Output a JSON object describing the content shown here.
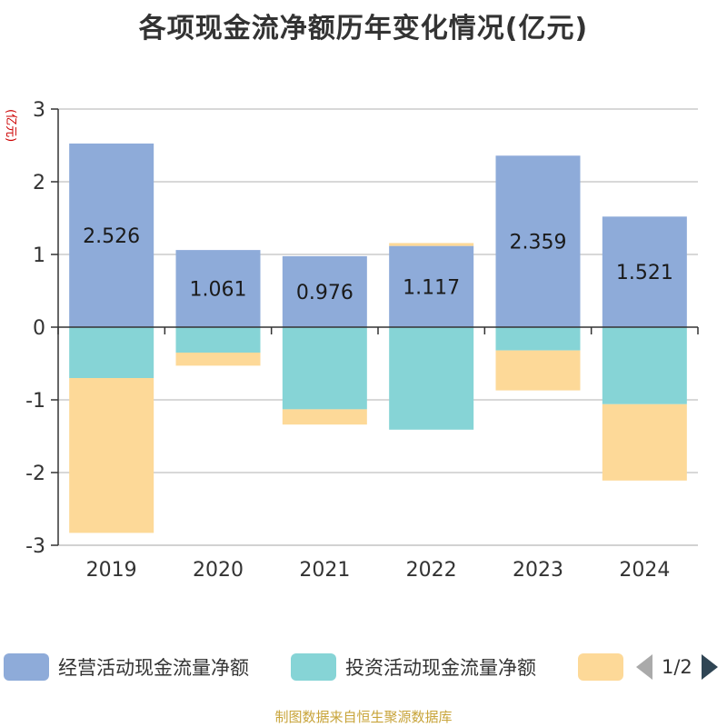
{
  "chart_data": {
    "type": "bar",
    "stacked": true,
    "title": "各项现金流净额历年变化情况(亿元)",
    "ylabel": "(亿元)",
    "categories": [
      "2019",
      "2020",
      "2021",
      "2022",
      "2023",
      "2024"
    ],
    "ylim": [
      -3,
      3
    ],
    "yticks": [
      3,
      2,
      1,
      0,
      -1,
      -2,
      -3
    ],
    "grid": true,
    "legend_position": "bottom",
    "series": [
      {
        "name": "经营活动现金流量净额",
        "values": [
          2.526,
          1.061,
          0.976,
          1.117,
          2.359,
          1.521
        ],
        "color": "#8eabd9",
        "show_labels": true
      },
      {
        "name": "投资活动现金流量净额",
        "values": [
          -0.7,
          -0.35,
          -1.13,
          -1.41,
          -0.32,
          -1.06
        ],
        "color": "#86d4d6",
        "show_labels": false
      },
      {
        "name": "",
        "values": [
          -2.13,
          -0.18,
          -0.21,
          0.04,
          -0.55,
          -1.05
        ],
        "color": "#fdd998",
        "show_labels": false
      }
    ]
  },
  "legend": {
    "pager_text": "1/2"
  },
  "source": "制图数据来自恒生聚源数据库"
}
